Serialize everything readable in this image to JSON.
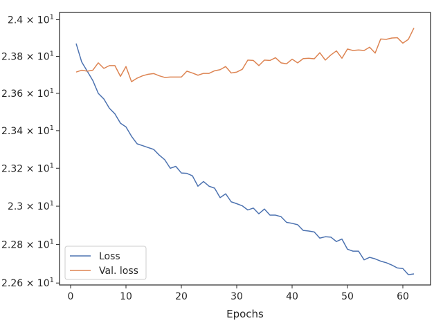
{
  "chart_data": {
    "type": "line",
    "title": "",
    "xlabel": "Epochs",
    "ylabel": "",
    "xlim": [
      -2,
      65
    ],
    "ylim": [
      22.59,
      24.04
    ],
    "y_scale": "log",
    "grid": false,
    "legend_position": "lower-left",
    "x_ticks": [
      0,
      10,
      20,
      30,
      40,
      50,
      60
    ],
    "x_tick_labels": [
      "0",
      "10",
      "20",
      "30",
      "40",
      "50",
      "60"
    ],
    "y_ticks": [
      22.6,
      22.8,
      23.0,
      23.2,
      23.4,
      23.6,
      23.8,
      24.0
    ],
    "y_tick_labels": [
      {
        "mantissa": "2.26",
        "exponent": "1"
      },
      {
        "mantissa": "2.28",
        "exponent": "1"
      },
      {
        "mantissa": "2.3",
        "exponent": "1"
      },
      {
        "mantissa": "2.32",
        "exponent": "1"
      },
      {
        "mantissa": "2.34",
        "exponent": "1"
      },
      {
        "mantissa": "2.36",
        "exponent": "1"
      },
      {
        "mantissa": "2.38",
        "exponent": "1"
      },
      {
        "mantissa": "2.4",
        "exponent": "1"
      }
    ],
    "x": [
      1,
      2,
      3,
      4,
      5,
      6,
      7,
      8,
      9,
      10,
      11,
      12,
      13,
      14,
      15,
      16,
      17,
      18,
      19,
      20,
      21,
      22,
      23,
      24,
      25,
      26,
      27,
      28,
      29,
      30,
      31,
      32,
      33,
      34,
      35,
      36,
      37,
      38,
      39,
      40,
      41,
      42,
      43,
      44,
      45,
      46,
      47,
      48,
      49,
      50,
      51,
      52,
      53,
      54,
      55,
      56,
      57,
      58,
      59,
      60,
      61,
      62
    ],
    "series": [
      {
        "name": "Loss",
        "color": "#4c72b0",
        "values": [
          23.87,
          23.77,
          23.72,
          23.67,
          23.6,
          23.57,
          23.52,
          23.49,
          23.44,
          23.42,
          23.37,
          23.33,
          23.32,
          23.31,
          23.3,
          23.27,
          23.245,
          23.2,
          23.21,
          23.175,
          23.173,
          23.16,
          23.105,
          23.13,
          23.105,
          23.095,
          23.045,
          23.065,
          23.023,
          23.013,
          23.002,
          22.98,
          22.99,
          22.96,
          22.985,
          22.953,
          22.953,
          22.945,
          22.915,
          22.91,
          22.903,
          22.873,
          22.87,
          22.865,
          22.833,
          22.84,
          22.838,
          22.815,
          22.828,
          22.775,
          22.765,
          22.765,
          22.72,
          22.733,
          22.725,
          22.713,
          22.705,
          22.693,
          22.678,
          22.675,
          22.643,
          22.647
        ]
      },
      {
        "name": "Val. loss",
        "color": "#dd8452",
        "values": [
          23.715,
          23.725,
          23.72,
          23.725,
          23.765,
          23.735,
          23.75,
          23.75,
          23.692,
          23.745,
          23.663,
          23.682,
          23.695,
          23.703,
          23.707,
          23.695,
          23.686,
          23.688,
          23.688,
          23.688,
          23.72,
          23.71,
          23.698,
          23.708,
          23.708,
          23.722,
          23.728,
          23.745,
          23.71,
          23.715,
          23.73,
          23.78,
          23.778,
          23.75,
          23.78,
          23.778,
          23.793,
          23.765,
          23.76,
          23.785,
          23.765,
          23.788,
          23.79,
          23.787,
          23.82,
          23.78,
          23.808,
          23.83,
          23.79,
          23.84,
          23.832,
          23.835,
          23.832,
          23.85,
          23.818,
          23.895,
          23.893,
          23.9,
          23.902,
          23.872,
          23.893,
          23.955
        ]
      }
    ]
  }
}
